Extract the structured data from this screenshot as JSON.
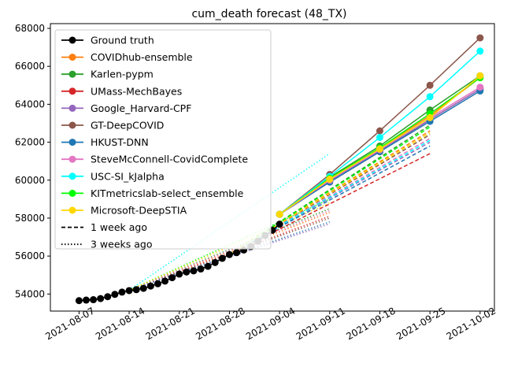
{
  "chart_data": {
    "type": "line",
    "title": "cum_death forecast (48_TX)",
    "xlabel": "",
    "ylabel": "",
    "x_range": [
      "2021-08-03",
      "2021-10-04"
    ],
    "ylim": [
      53100,
      68250
    ],
    "x_ticks": [
      "2021-08-07",
      "2021-08-14",
      "2021-08-21",
      "2021-08-28",
      "2021-09-04",
      "2021-09-11",
      "2021-09-18",
      "2021-09-25",
      "2021-10-02"
    ],
    "y_ticks": [
      54000,
      56000,
      58000,
      60000,
      62000,
      64000,
      66000,
      68000
    ],
    "y_tick_labels": [
      "54000",
      "56000",
      "58000",
      "60000",
      "62000",
      "64000",
      "66000",
      "68000"
    ],
    "grid": false,
    "legend_position": "upper-left",
    "legend": [
      {
        "label": "Ground truth",
        "color": "#000000",
        "style": "solid",
        "marker": true
      },
      {
        "label": "COVIDhub-ensemble",
        "color": "#ff7f0e",
        "style": "solid",
        "marker": true
      },
      {
        "label": "Karlen-pypm",
        "color": "#2ca02c",
        "style": "solid",
        "marker": true
      },
      {
        "label": "UMass-MechBayes",
        "color": "#d62728",
        "style": "solid",
        "marker": true
      },
      {
        "label": "Google_Harvard-CPF",
        "color": "#9467bd",
        "style": "solid",
        "marker": true
      },
      {
        "label": "GT-DeepCOVID",
        "color": "#8c564b",
        "style": "solid",
        "marker": true
      },
      {
        "label": "HKUST-DNN",
        "color": "#1f77b4",
        "style": "solid",
        "marker": true
      },
      {
        "label": "SteveMcConnell-CovidComplete",
        "color": "#e377c2",
        "style": "solid",
        "marker": true
      },
      {
        "label": "USC-SI_kJalpha",
        "color": "#00ffff",
        "style": "solid",
        "marker": true
      },
      {
        "label": "KITmetricslab-select_ensemble",
        "color": "#00ff00",
        "style": "solid",
        "marker": true
      },
      {
        "label": "Microsoft-DeepSTIA",
        "color": "#ffd700",
        "style": "solid",
        "marker": true
      },
      {
        "label": "1 week ago",
        "color": "#000000",
        "style": "dashed",
        "marker": false
      },
      {
        "label": "3 weeks ago",
        "color": "#000000",
        "style": "dotted",
        "marker": false
      }
    ],
    "ground_truth": {
      "name": "Ground truth",
      "color": "#000000",
      "points": [
        [
          "2021-08-07",
          53650
        ],
        [
          "2021-08-08",
          53680
        ],
        [
          "2021-08-09",
          53700
        ],
        [
          "2021-08-10",
          53760
        ],
        [
          "2021-08-11",
          53860
        ],
        [
          "2021-08-12",
          53980
        ],
        [
          "2021-08-13",
          54100
        ],
        [
          "2021-08-14",
          54180
        ],
        [
          "2021-08-15",
          54230
        ],
        [
          "2021-08-16",
          54300
        ],
        [
          "2021-08-17",
          54420
        ],
        [
          "2021-08-18",
          54540
        ],
        [
          "2021-08-19",
          54680
        ],
        [
          "2021-08-20",
          54860
        ],
        [
          "2021-08-21",
          55050
        ],
        [
          "2021-08-22",
          55160
        ],
        [
          "2021-08-23",
          55220
        ],
        [
          "2021-08-24",
          55320
        ],
        [
          "2021-08-25",
          55460
        ],
        [
          "2021-08-26",
          55660
        ],
        [
          "2021-08-27",
          55880
        ],
        [
          "2021-08-28",
          56080
        ],
        [
          "2021-08-29",
          56180
        ],
        [
          "2021-08-30",
          56320
        ],
        [
          "2021-08-31",
          56500
        ],
        [
          "2021-09-01",
          56780
        ],
        [
          "2021-09-02",
          57080
        ],
        [
          "2021-09-03",
          57360
        ],
        [
          "2021-09-04",
          57680
        ]
      ]
    },
    "forecast_dates": [
      "2021-09-04",
      "2021-09-11",
      "2021-09-18",
      "2021-09-25",
      "2021-10-02"
    ],
    "series": [
      {
        "name": "COVIDhub-ensemble",
        "color": "#ff7f0e",
        "values": [
          58200,
          60100,
          61700,
          63400,
          65400
        ],
        "week1": [
          [
            57900,
            "2021-09-04"
          ],
          [
            62600,
            "2021-09-25"
          ]
        ],
        "week3": [
          [
            57800,
            "2021-09-04"
          ],
          [
            58300,
            "2021-09-11"
          ]
        ]
      },
      {
        "name": "Karlen-pypm",
        "color": "#2ca02c",
        "values": [
          58200,
          60150,
          61800,
          63700,
          65500
        ],
        "week1": [
          [
            57900,
            "2021-09-04"
          ],
          [
            62900,
            "2021-09-25"
          ]
        ],
        "week3": [
          [
            57900,
            "2021-09-04"
          ],
          [
            58500,
            "2021-09-11"
          ]
        ]
      },
      {
        "name": "UMass-MechBayes",
        "color": "#d62728",
        "values": [
          58200,
          59900,
          61500,
          63200,
          64800
        ],
        "week1": [
          [
            57900,
            "2021-09-04"
          ],
          [
            61400,
            "2021-09-25"
          ]
        ],
        "week3": [
          [
            57800,
            "2021-09-04"
          ],
          [
            58100,
            "2021-09-11"
          ]
        ]
      },
      {
        "name": "Google_Harvard-CPF",
        "color": "#9467bd",
        "values": [
          58200,
          59950,
          61550,
          63200,
          64800
        ],
        "week1": [
          [
            57900,
            "2021-09-04"
          ],
          [
            62000,
            "2021-09-25"
          ]
        ],
        "week3": [
          [
            57700,
            "2021-09-04"
          ],
          [
            57700,
            "2021-09-11"
          ]
        ]
      },
      {
        "name": "GT-DeepCOVID",
        "color": "#8c564b",
        "values": [
          58200,
          60300,
          62600,
          65000,
          67500
        ],
        "week1": [
          [
            57900,
            "2021-09-04"
          ],
          [
            62400,
            "2021-09-25"
          ]
        ],
        "week3": [
          [
            57900,
            "2021-09-04"
          ],
          [
            58000,
            "2021-09-11"
          ]
        ]
      },
      {
        "name": "HKUST-DNN",
        "color": "#1f77b4",
        "values": [
          58200,
          59900,
          61500,
          63100,
          64700
        ],
        "week1": [
          [
            57900,
            "2021-09-04"
          ],
          [
            61800,
            "2021-09-25"
          ]
        ],
        "week3": [
          [
            57700,
            "2021-09-04"
          ],
          [
            57800,
            "2021-09-11"
          ]
        ]
      },
      {
        "name": "SteveMcConnell-CovidComplete",
        "color": "#e377c2",
        "values": [
          58200,
          60000,
          61600,
          63300,
          64900
        ],
        "week1": [
          [
            57900,
            "2021-09-04"
          ],
          [
            62200,
            "2021-09-25"
          ]
        ],
        "week3": [
          [
            57800,
            "2021-09-04"
          ],
          [
            58400,
            "2021-09-11"
          ]
        ]
      },
      {
        "name": "USC-SI_kJalpha",
        "color": "#00ffff",
        "values": [
          58200,
          60200,
          62250,
          64400,
          66800
        ],
        "week1": [
          [
            57900,
            "2021-09-04"
          ],
          [
            62100,
            "2021-09-25"
          ]
        ],
        "week3": [
          [
            58000,
            "2021-09-04"
          ],
          [
            61400,
            "2021-09-11"
          ]
        ]
      },
      {
        "name": "KITmetricslab-select_ensemble",
        "color": "#00ff00",
        "values": [
          58200,
          60100,
          61700,
          63500,
          65400
        ],
        "week1": [
          [
            57900,
            "2021-09-04"
          ],
          [
            62800,
            "2021-09-25"
          ]
        ],
        "week3": [
          [
            57900,
            "2021-09-04"
          ],
          [
            59000,
            "2021-09-11"
          ]
        ]
      },
      {
        "name": "Microsoft-DeepSTIA",
        "color": "#ffd700",
        "values": [
          58200,
          60050,
          61650,
          63300,
          65500
        ],
        "week1": [
          [
            57900,
            "2021-09-04"
          ],
          [
            62500,
            "2021-09-25"
          ]
        ],
        "week3": [
          [
            57900,
            "2021-09-04"
          ],
          [
            58800,
            "2021-09-11"
          ]
        ]
      }
    ]
  }
}
